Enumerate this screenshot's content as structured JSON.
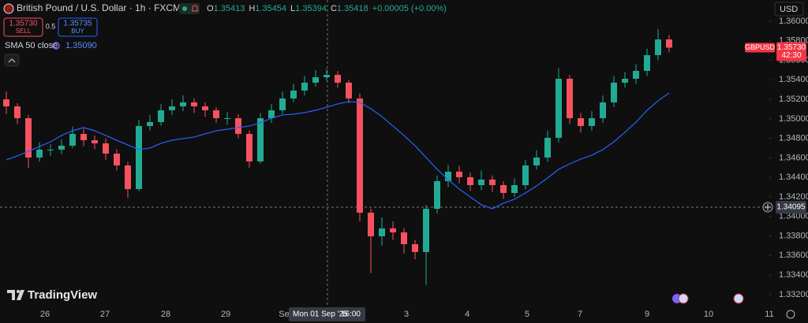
{
  "header": {
    "title": "British Pound / U.S. Dollar · 1h · FXCM",
    "ohlc": [
      {
        "key": "O",
        "value": "1.35413"
      },
      {
        "key": "H",
        "value": "1.35454"
      },
      {
        "key": "L",
        "value": "1.35394"
      },
      {
        "key": "C",
        "value": "1.35418"
      }
    ],
    "change": "+0.00005 (+0.00%)",
    "sell": {
      "price": "1.35730",
      "label": "SELL"
    },
    "spread": "0.5",
    "buy": {
      "price": "1.35735",
      "label": "BUY"
    },
    "currency": "USD",
    "logo": "TradingView"
  },
  "chart_data": {
    "type": "candlestick",
    "open": [
      1.352,
      1.35128,
      1.35007,
      1.34604,
      1.34685,
      1.34685,
      1.34725,
      1.34846,
      1.34781,
      1.34749,
      1.34644,
      1.34523,
      1.34281,
      1.34927,
      1.34967,
      1.35088,
      1.35128,
      1.35169,
      1.35128,
      1.35088,
      1.35007,
      1.35007,
      1.34846,
      1.34564,
      1.35007,
      1.35088,
      1.35209,
      1.3529,
      1.35371,
      1.35427,
      1.35451,
      1.35371,
      1.35209,
      1.34039,
      1.33797,
      1.33878,
      1.33837,
      1.33716,
      1.33635,
      1.34079,
      1.34362,
      1.34459,
      1.34402,
      1.34321,
      1.34378,
      1.34321,
      1.34241,
      1.34321,
      1.34523,
      1.34604,
      1.34806,
      1.35411,
      1.35007,
      1.34927,
      1.35007,
      1.35169,
      1.35371,
      1.35411,
      1.35492,
      1.35653,
      1.35814
    ],
    "high": [
      1.3528,
      1.3516,
      1.3504,
      1.3476,
      1.3474,
      1.3479,
      1.3492,
      1.349,
      1.3483,
      1.348,
      1.3469,
      1.3456,
      1.3499,
      1.3504,
      1.3515,
      1.352,
      1.3524,
      1.3521,
      1.3517,
      1.3512,
      1.3507,
      1.3505,
      1.3488,
      1.3506,
      1.3515,
      1.3528,
      1.3536,
      1.3544,
      1.355,
      1.3551,
      1.3549,
      1.354,
      1.3526,
      1.3408,
      1.3399,
      1.3395,
      1.3388,
      1.3376,
      1.3412,
      1.3442,
      1.3453,
      1.3452,
      1.3445,
      1.3447,
      1.3442,
      1.3436,
      1.3439,
      1.3458,
      1.3468,
      1.3488,
      1.3552,
      1.3545,
      1.3506,
      1.3508,
      1.3524,
      1.3544,
      1.3548,
      1.3556,
      1.3572,
      1.3592,
      1.3586
    ],
    "low": [
      1.3505,
      1.3495,
      1.345,
      1.3456,
      1.3462,
      1.3464,
      1.347,
      1.3472,
      1.3469,
      1.3458,
      1.3447,
      1.3419,
      1.3426,
      1.3488,
      1.3493,
      1.3504,
      1.3508,
      1.3506,
      1.3502,
      1.3496,
      1.3494,
      1.348,
      1.345,
      1.3454,
      1.3496,
      1.3505,
      1.3517,
      1.3524,
      1.3533,
      1.3539,
      1.3532,
      1.3516,
      1.3395,
      1.3342,
      1.337,
      1.3376,
      1.3362,
      1.3356,
      1.333,
      1.3403,
      1.343,
      1.3434,
      1.3426,
      1.3427,
      1.3425,
      1.3418,
      1.342,
      1.3428,
      1.3448,
      1.3456,
      1.3476,
      1.3495,
      1.3486,
      1.3488,
      1.3496,
      1.3512,
      1.3532,
      1.3536,
      1.3544,
      1.356,
      1.3568
    ],
    "close": [
      1.35128,
      1.35007,
      1.34604,
      1.34685,
      1.34685,
      1.34725,
      1.34846,
      1.34781,
      1.34749,
      1.34644,
      1.34523,
      1.34281,
      1.34927,
      1.34967,
      1.35088,
      1.35128,
      1.35169,
      1.35128,
      1.35088,
      1.35007,
      1.35007,
      1.34846,
      1.34564,
      1.35007,
      1.35088,
      1.35209,
      1.3529,
      1.35371,
      1.35427,
      1.35451,
      1.35371,
      1.35209,
      1.34039,
      1.33797,
      1.33878,
      1.33837,
      1.33716,
      1.33635,
      1.34079,
      1.34362,
      1.34459,
      1.34402,
      1.34321,
      1.34378,
      1.34321,
      1.34241,
      1.34321,
      1.34523,
      1.34604,
      1.34806,
      1.35411,
      1.35007,
      1.34927,
      1.35007,
      1.35169,
      1.35371,
      1.35411,
      1.35492,
      1.35653,
      1.35814,
      1.3573
    ],
    "up_color": "#22ab94",
    "down_color": "#f7525f",
    "sma": {
      "name": "SMA 50 close",
      "current": "1.35090",
      "color": "#2962ff",
      "values": [
        1.3458,
        1.3462,
        1.34668,
        1.34717,
        1.34765,
        1.3483,
        1.34878,
        1.34911,
        1.34878,
        1.3483,
        1.34781,
        1.34733,
        1.34685,
        1.34701,
        1.34749,
        1.34781,
        1.34798,
        1.34814,
        1.34846,
        1.34878,
        1.34894,
        1.34911,
        1.34927,
        1.34959,
        1.35007,
        1.3504,
        1.35048,
        1.35064,
        1.35088,
        1.3512,
        1.35153,
        1.35177,
        1.35169,
        1.35104,
        1.35024,
        1.34927,
        1.3483,
        1.34725,
        1.34604,
        1.34483,
        1.34378,
        1.34281,
        1.342,
        1.3412,
        1.34079,
        1.34136,
        1.34176,
        1.34241,
        1.34313,
        1.34394,
        1.34483,
        1.34539,
        1.34588,
        1.34628,
        1.34685,
        1.34765,
        1.34862,
        1.34967,
        1.35088,
        1.35185,
        1.35266
      ]
    },
    "ylim": [
      1.33086,
      1.36218
    ],
    "yticks": [
      {
        "value": 1.36,
        "label": "1.36000"
      },
      {
        "value": 1.358,
        "label": "1.35800"
      },
      {
        "value": 1.356,
        "label": "1.35600"
      },
      {
        "value": 1.354,
        "label": "1.35400"
      },
      {
        "value": 1.352,
        "label": "1.35200"
      },
      {
        "value": 1.35,
        "label": "1.35000"
      },
      {
        "value": 1.348,
        "label": "1.34800"
      },
      {
        "value": 1.346,
        "label": "1.34600"
      },
      {
        "value": 1.344,
        "label": "1.34400"
      },
      {
        "value": 1.342,
        "label": "1.34200"
      },
      {
        "value": 1.34,
        "label": "1.34000"
      },
      {
        "value": 1.338,
        "label": "1.33800"
      },
      {
        "value": 1.336,
        "label": "1.33600"
      },
      {
        "value": 1.334,
        "label": "1.33400"
      },
      {
        "value": 1.332,
        "label": "1.33200"
      }
    ],
    "x_labels": [
      "26",
      "27",
      "28",
      "29",
      "Se",
      "3",
      "4",
      "5",
      "7",
      "9",
      "10",
      "11"
    ],
    "last_price": {
      "symbol": "GBPUSD",
      "value": 1.3573,
      "label": "1.35730",
      "countdown": "42:30"
    },
    "crosshair": {
      "price": 1.34095,
      "date": "Mon 01 Sep '25",
      "time": "16:00"
    }
  }
}
